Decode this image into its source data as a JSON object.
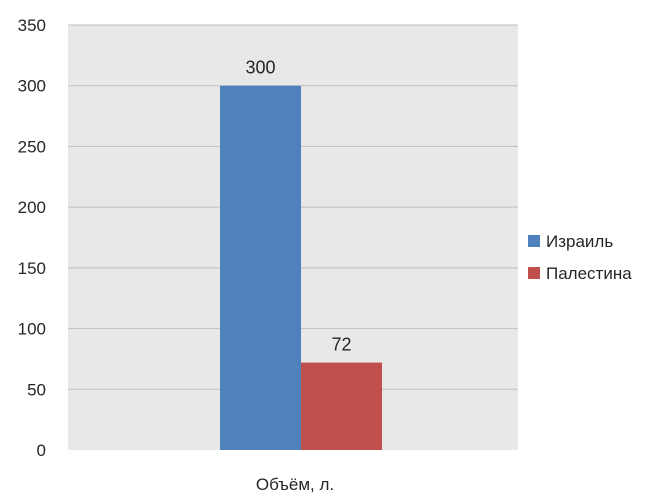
{
  "chart_data": {
    "type": "bar",
    "categories": [
      "Объём, л."
    ],
    "series": [
      {
        "name": "Израиль",
        "values": [
          300
        ],
        "color": "#4f81bd"
      },
      {
        "name": "Палестина",
        "values": [
          72
        ],
        "color": "#c0504d"
      }
    ],
    "ylim": [
      0,
      350
    ],
    "yticks": [
      0,
      50,
      100,
      150,
      200,
      250,
      300,
      350
    ],
    "grid": true,
    "legend_position": "right",
    "data_labels": true,
    "plot_background": "#e8e8e8",
    "gridline_color": "#bfbfbf"
  }
}
